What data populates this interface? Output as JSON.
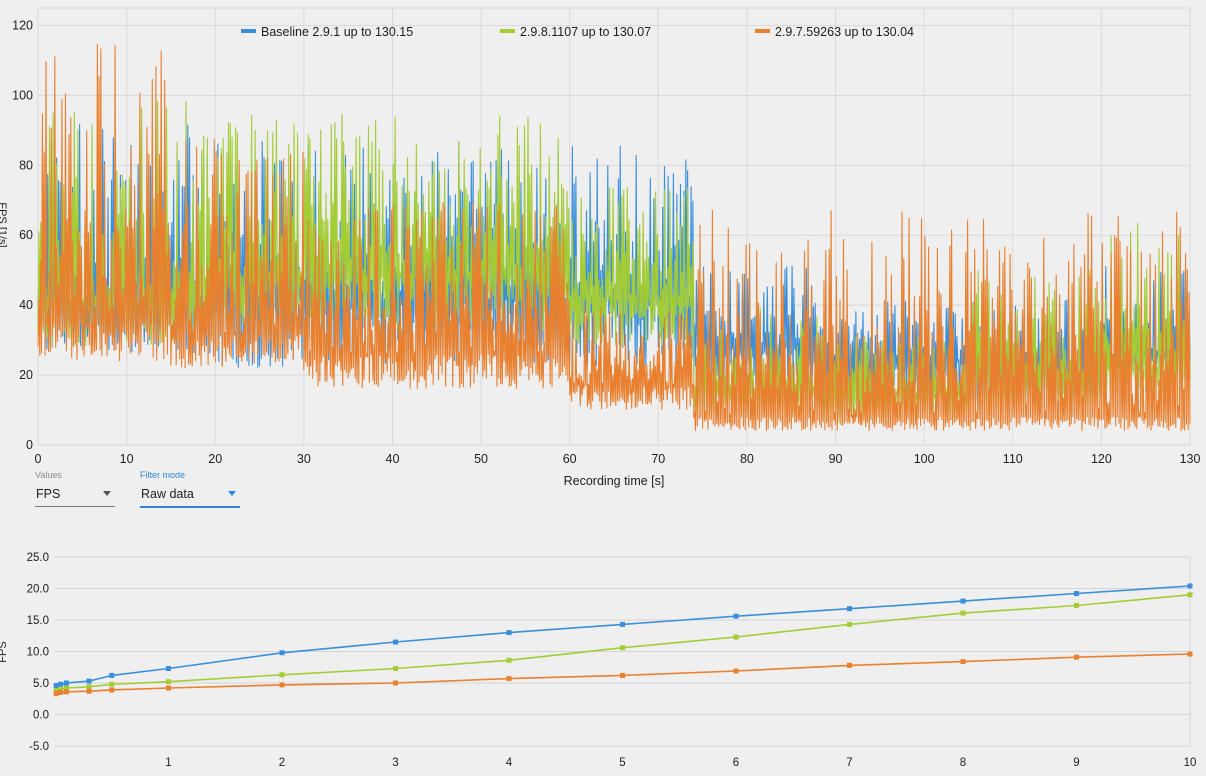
{
  "colors": {
    "baseline": "#3a8fdb",
    "v2981107": "#a3cc35",
    "v29759263": "#e8802f"
  },
  "controls": {
    "values": {
      "label": "Values",
      "selected": "FPS"
    },
    "filter": {
      "label": "Filter mode",
      "selected": "Raw data"
    }
  },
  "chart_data": [
    {
      "type": "line",
      "xlabel": "Recording time [s]",
      "ylabel": "FPS [1/s]",
      "xlim": [
        0,
        130
      ],
      "ylim": [
        0,
        125
      ],
      "xticks": [
        0,
        10,
        20,
        30,
        40,
        50,
        60,
        70,
        80,
        90,
        100,
        110,
        120,
        130
      ],
      "yticks": [
        0,
        20,
        40,
        60,
        80,
        100,
        120
      ],
      "grid": true,
      "legend_position": "top",
      "series": [
        {
          "name": "Baseline 2.9.1 up to 130.15",
          "color": "#3a8fdb",
          "segments": [
            [
              0,
              20,
              26,
              38,
              92
            ],
            [
              20,
              74,
              22,
              42,
              88
            ],
            [
              74,
              88,
              16,
              28,
              52
            ],
            [
              88,
              105,
              8,
              24,
              42
            ],
            [
              105,
              120,
              12,
              22,
              42
            ],
            [
              120,
              130,
              20,
              26,
              52
            ]
          ]
        },
        {
          "name": "2.9.8.1107 up to 130.07",
          "color": "#a3cc35",
          "segments": [
            [
              0,
              20,
              28,
              40,
              100
            ],
            [
              20,
              60,
              32,
              48,
              95
            ],
            [
              60,
              74,
              28,
              42,
              74
            ],
            [
              74,
              88,
              8,
              16,
              40
            ],
            [
              88,
              105,
              6,
              14,
              32
            ],
            [
              105,
              120,
              10,
              18,
              50
            ],
            [
              120,
              130,
              14,
              22,
              64
            ]
          ]
        },
        {
          "name": "2.9.7.59263 up to 130.04",
          "color": "#e8802f",
          "segments": [
            [
              0,
              15,
              24,
              35,
              116
            ],
            [
              15,
              30,
              22,
              32,
              88
            ],
            [
              30,
              60,
              16,
              26,
              70
            ],
            [
              60,
              74,
              10,
              17,
              40
            ],
            [
              74,
              130,
              4,
              8,
              68
            ]
          ]
        }
      ]
    },
    {
      "type": "line",
      "ylabel": "FPS",
      "xlim": [
        0,
        10
      ],
      "ylim": [
        -5,
        25
      ],
      "xticks": [
        1,
        2,
        3,
        4,
        5,
        6,
        7,
        8,
        9,
        10
      ],
      "yticks": [
        "-5.0",
        "0.0",
        "5.0",
        "10.0",
        "15.0",
        "20.0",
        "25.0"
      ],
      "grid": true,
      "series": [
        {
          "color": "#3a8fdb",
          "x": [
            0.01,
            0.05,
            0.1,
            0.3,
            0.5,
            1,
            2,
            3,
            4,
            5,
            6,
            7,
            8,
            9,
            10
          ],
          "y": [
            4.6,
            4.8,
            5.0,
            5.3,
            6.2,
            7.3,
            9.8,
            11.5,
            13.0,
            14.3,
            15.6,
            16.8,
            18.0,
            19.2,
            20.4
          ]
        },
        {
          "color": "#a3cc35",
          "x": [
            0.01,
            0.05,
            0.1,
            0.3,
            0.5,
            1,
            2,
            3,
            4,
            5,
            6,
            7,
            8,
            9,
            10
          ],
          "y": [
            3.8,
            4.0,
            4.2,
            4.4,
            4.8,
            5.2,
            6.3,
            7.3,
            8.6,
            10.6,
            12.3,
            14.3,
            16.1,
            17.3,
            19.0
          ]
        },
        {
          "color": "#e8802f",
          "x": [
            0.01,
            0.05,
            0.1,
            0.3,
            0.5,
            1,
            2,
            3,
            4,
            5,
            6,
            7,
            8,
            9,
            10
          ],
          "y": [
            3.3,
            3.5,
            3.6,
            3.7,
            3.9,
            4.2,
            4.7,
            5.0,
            5.7,
            6.2,
            6.9,
            7.8,
            8.4,
            9.1,
            9.6
          ]
        }
      ]
    }
  ]
}
